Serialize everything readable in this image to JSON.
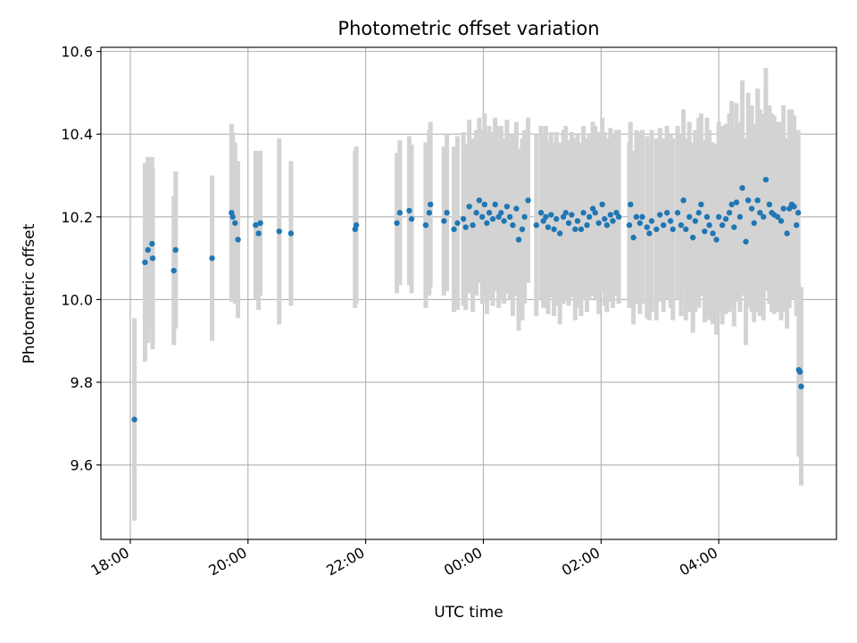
{
  "chart_data": {
    "type": "scatter",
    "title": "Photometric offset variation",
    "xlabel": "UTC time",
    "ylabel": "Photometric offset",
    "x_unit": "hours",
    "xlim": [
      17.5,
      30.0
    ],
    "ylim": [
      9.42,
      10.61
    ],
    "x_ticks": [
      18,
      20,
      22,
      24,
      26,
      28
    ],
    "x_tick_labels": [
      "18:00",
      "20:00",
      "22:00",
      "00:00",
      "02:00",
      "04:00"
    ],
    "y_ticks": [
      9.6,
      9.8,
      10.0,
      10.2,
      10.4,
      10.6
    ],
    "y_tick_labels": [
      "9.6",
      "9.8",
      "10.0",
      "10.2",
      "10.4",
      "10.6"
    ],
    "grid": true,
    "colors": {
      "marker": "#1f77b4",
      "errorbar": "#d3d3d3",
      "grid": "#b0b0b0"
    },
    "series": [
      {
        "x": [
          18.07,
          18.25,
          18.3,
          18.37,
          18.38,
          18.74,
          18.77,
          19.39,
          19.72,
          19.74,
          19.78,
          19.83,
          20.13,
          20.18,
          20.21,
          20.53,
          20.73,
          21.82,
          21.84,
          22.53,
          22.58,
          22.74,
          22.78,
          23.02,
          23.08,
          23.1,
          23.33,
          23.38,
          23.5,
          23.56,
          23.66,
          23.7,
          23.76,
          23.82,
          23.88,
          23.93,
          23.98,
          24.02,
          24.06,
          24.1,
          24.16,
          24.2,
          24.26,
          24.3,
          24.35,
          24.4,
          24.45,
          24.5,
          24.56,
          24.6,
          24.66,
          24.7,
          24.76,
          24.9,
          24.98,
          25.02,
          25.06,
          25.1,
          25.15,
          25.2,
          25.24,
          25.3,
          25.36,
          25.4,
          25.45,
          25.5,
          25.56,
          25.6,
          25.66,
          25.7,
          25.76,
          25.8,
          25.86,
          25.9,
          25.96,
          26.02,
          26.06,
          26.1,
          26.16,
          26.2,
          26.26,
          26.3,
          26.48,
          26.5,
          26.55,
          26.6,
          26.66,
          26.7,
          26.78,
          26.82,
          26.86,
          26.94,
          27.0,
          27.06,
          27.12,
          27.18,
          27.22,
          27.3,
          27.36,
          27.4,
          27.44,
          27.5,
          27.56,
          27.6,
          27.66,
          27.7,
          27.76,
          27.8,
          27.84,
          27.9,
          27.96,
          28.0,
          28.06,
          28.12,
          28.18,
          28.22,
          28.26,
          28.3,
          28.36,
          28.4,
          28.46,
          28.5,
          28.56,
          28.6,
          28.66,
          28.7,
          28.76,
          28.8,
          28.86,
          28.9,
          28.94,
          29.0,
          29.06,
          29.1,
          29.16,
          29.2,
          29.24,
          29.28,
          29.32,
          29.35,
          29.36,
          29.38,
          29.4
        ],
        "y": [
          9.71,
          10.09,
          10.12,
          10.135,
          10.1,
          10.07,
          10.12,
          10.1,
          10.21,
          10.2,
          10.185,
          10.145,
          10.18,
          10.16,
          10.185,
          10.165,
          10.16,
          10.17,
          10.18,
          10.185,
          10.21,
          10.215,
          10.195,
          10.18,
          10.21,
          10.23,
          10.19,
          10.21,
          10.17,
          10.185,
          10.195,
          10.175,
          10.225,
          10.18,
          10.21,
          10.24,
          10.2,
          10.23,
          10.185,
          10.21,
          10.195,
          10.23,
          10.2,
          10.21,
          10.19,
          10.225,
          10.2,
          10.18,
          10.22,
          10.145,
          10.17,
          10.2,
          10.24,
          10.18,
          10.21,
          10.19,
          10.2,
          10.175,
          10.205,
          10.17,
          10.195,
          10.16,
          10.2,
          10.21,
          10.185,
          10.205,
          10.17,
          10.19,
          10.17,
          10.21,
          10.18,
          10.2,
          10.22,
          10.21,
          10.185,
          10.23,
          10.195,
          10.18,
          10.205,
          10.19,
          10.21,
          10.2,
          10.18,
          10.23,
          10.15,
          10.2,
          10.185,
          10.2,
          10.175,
          10.16,
          10.19,
          10.17,
          10.205,
          10.18,
          10.21,
          10.19,
          10.17,
          10.21,
          10.18,
          10.24,
          10.17,
          10.2,
          10.15,
          10.19,
          10.21,
          10.23,
          10.165,
          10.2,
          10.18,
          10.16,
          10.145,
          10.2,
          10.18,
          10.195,
          10.21,
          10.23,
          10.175,
          10.235,
          10.2,
          10.27,
          10.14,
          10.24,
          10.22,
          10.185,
          10.24,
          10.21,
          10.2,
          10.29,
          10.23,
          10.21,
          10.205,
          10.2,
          10.19,
          10.22,
          10.16,
          10.22,
          10.23,
          10.225,
          10.18,
          10.21,
          9.83,
          9.825,
          9.79
        ],
        "yerr": [
          0.245,
          0.24,
          0.225,
          0.21,
          0.22,
          0.18,
          0.19,
          0.2,
          0.215,
          0.205,
          0.195,
          0.19,
          0.18,
          0.185,
          0.175,
          0.225,
          0.175,
          0.19,
          0.19,
          0.17,
          0.175,
          0.18,
          0.18,
          0.2,
          0.2,
          0.2,
          0.18,
          0.19,
          0.2,
          0.21,
          0.21,
          0.2,
          0.21,
          0.21,
          0.2,
          0.2,
          0.21,
          0.22,
          0.22,
          0.21,
          0.21,
          0.21,
          0.22,
          0.21,
          0.2,
          0.21,
          0.2,
          0.22,
          0.21,
          0.22,
          0.22,
          0.21,
          0.2,
          0.22,
          0.21,
          0.21,
          0.22,
          0.21,
          0.2,
          0.21,
          0.21,
          0.22,
          0.21,
          0.21,
          0.2,
          0.2,
          0.22,
          0.21,
          0.21,
          0.21,
          0.21,
          0.2,
          0.21,
          0.21,
          0.22,
          0.21,
          0.21,
          0.21,
          0.21,
          0.21,
          0.2,
          0.21,
          0.2,
          0.2,
          0.21,
          0.21,
          0.22,
          0.21,
          0.22,
          0.21,
          0.22,
          0.22,
          0.21,
          0.21,
          0.21,
          0.21,
          0.22,
          0.21,
          0.22,
          0.22,
          0.22,
          0.23,
          0.23,
          0.22,
          0.23,
          0.22,
          0.22,
          0.24,
          0.23,
          0.22,
          0.23,
          0.23,
          0.24,
          0.23,
          0.24,
          0.25,
          0.24,
          0.24,
          0.23,
          0.26,
          0.25,
          0.26,
          0.25,
          0.24,
          0.27,
          0.25,
          0.25,
          0.27,
          0.24,
          0.24,
          0.24,
          0.23,
          0.24,
          0.25,
          0.23,
          0.24,
          0.23,
          0.22,
          0.22,
          0.2,
          0.21,
          0.2,
          0.24
        ]
      }
    ]
  }
}
